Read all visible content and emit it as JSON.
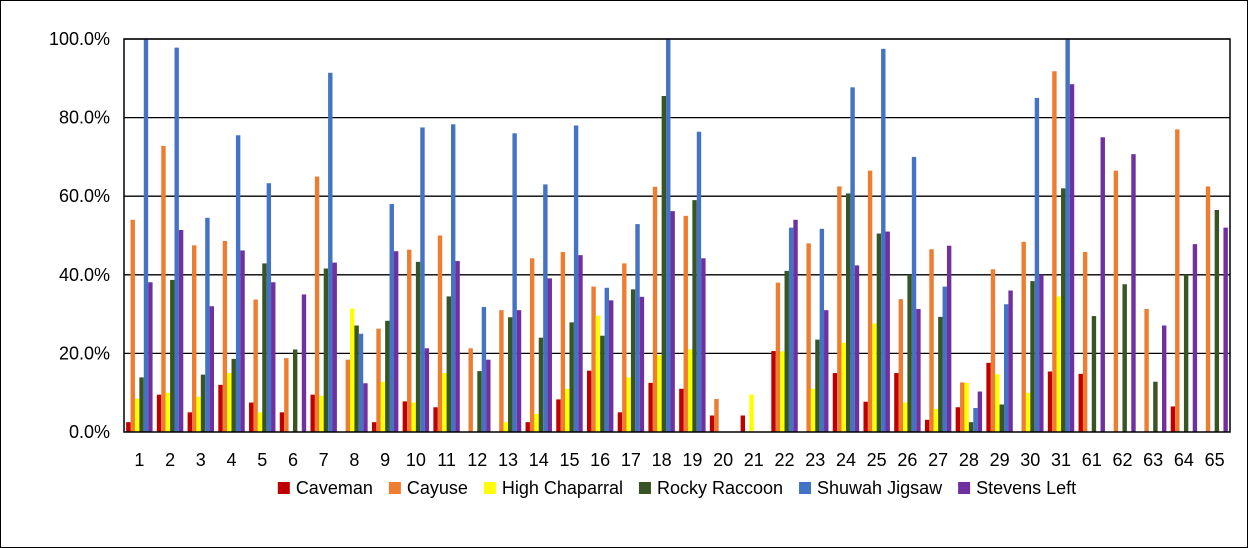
{
  "chart_data": {
    "type": "bar",
    "title": "",
    "xlabel": "",
    "ylabel": "",
    "ylim": [
      0,
      100
    ],
    "y_tick_labels": [
      "0.0%",
      "20.0%",
      "40.0%",
      "60.0%",
      "80.0%",
      "100.0%"
    ],
    "y_tick_values": [
      0,
      20,
      40,
      60,
      80,
      100
    ],
    "grid": true,
    "legend_position": "bottom",
    "categories": [
      "1",
      "2",
      "3",
      "4",
      "5",
      "6",
      "7",
      "8",
      "9",
      "10",
      "11",
      "12",
      "13",
      "14",
      "15",
      "16",
      "17",
      "18",
      "19",
      "20",
      "21",
      "22",
      "23",
      "24",
      "25",
      "26",
      "27",
      "28",
      "29",
      "30",
      "31",
      "61",
      "62",
      "63",
      "64",
      "65"
    ],
    "series": [
      {
        "name": "Caveman",
        "color": "#C00000",
        "values": [
          2.5,
          9.5,
          5.0,
          12.0,
          7.5,
          5.0,
          9.5,
          0,
          2.5,
          7.8,
          6.3,
          0,
          0,
          2.5,
          8.3,
          15.6,
          5.0,
          12.5,
          11.0,
          4.2,
          4.2,
          20.6,
          0,
          15.0,
          7.7,
          15.0,
          3.1,
          6.3,
          17.6,
          0,
          15.4,
          14.8,
          0,
          0,
          6.5,
          0
        ]
      },
      {
        "name": "Cayuse",
        "color": "#ED7D31",
        "values": [
          54.0,
          72.8,
          47.5,
          48.6,
          33.7,
          18.8,
          65.0,
          18.4,
          26.3,
          46.4,
          50.0,
          21.3,
          31.0,
          44.2,
          45.8,
          37.0,
          42.9,
          62.4,
          55.0,
          8.4,
          0,
          38.0,
          48.0,
          62.5,
          66.5,
          33.8,
          46.5,
          12.6,
          41.4,
          48.4,
          91.8,
          45.8,
          66.5,
          31.3,
          77.0,
          62.5
        ]
      },
      {
        "name": "High Chaparral",
        "color": "#FFFF00",
        "values": [
          8.5,
          10.0,
          9.0,
          15.0,
          5.0,
          0,
          9.2,
          31.4,
          12.8,
          7.5,
          15.0,
          0,
          2.5,
          4.6,
          11.0,
          29.6,
          13.9,
          19.5,
          21.0,
          0,
          9.5,
          20.5,
          11.0,
          22.7,
          27.6,
          7.5,
          5.9,
          12.5,
          14.7,
          10.0,
          34.5,
          0,
          0,
          0,
          0,
          0
        ]
      },
      {
        "name": "Rocky Raccoon",
        "color": "#375623",
        "values": [
          13.9,
          38.7,
          14.6,
          18.6,
          42.9,
          21.0,
          41.6,
          27.1,
          28.3,
          43.3,
          34.5,
          15.5,
          29.2,
          24.0,
          27.9,
          24.5,
          36.3,
          85.5,
          59.0,
          0,
          0,
          41.0,
          23.5,
          60.7,
          50.5,
          40.0,
          29.3,
          2.5,
          7.0,
          38.4,
          62.0,
          29.5,
          37.6,
          12.8,
          40.0,
          56.5
        ]
      },
      {
        "name": "Shuwah Jigsaw",
        "color": "#4472C4",
        "values": [
          100,
          97.8,
          54.5,
          75.5,
          63.3,
          0,
          91.4,
          25.0,
          58.0,
          77.5,
          78.3,
          31.8,
          76.0,
          63.0,
          78.0,
          36.7,
          52.9,
          100,
          76.4,
          0,
          0,
          52.0,
          51.7,
          87.7,
          97.5,
          70.0,
          37.0,
          6.1,
          32.5,
          85.0,
          100,
          0,
          0,
          0,
          0,
          0
        ]
      },
      {
        "name": "Stevens Left",
        "color": "#7030A0",
        "values": [
          38.1,
          51.4,
          32.0,
          46.2,
          38.1,
          35.0,
          43.1,
          12.4,
          46.0,
          21.3,
          43.5,
          18.4,
          31.0,
          39.1,
          45.0,
          33.5,
          34.4,
          56.2,
          44.2,
          0,
          0,
          54.0,
          31.0,
          42.4,
          51.0,
          31.3,
          47.4,
          10.3,
          36.0,
          40.0,
          88.5,
          75.0,
          70.7,
          27.1,
          47.8,
          52.0
        ]
      }
    ]
  }
}
